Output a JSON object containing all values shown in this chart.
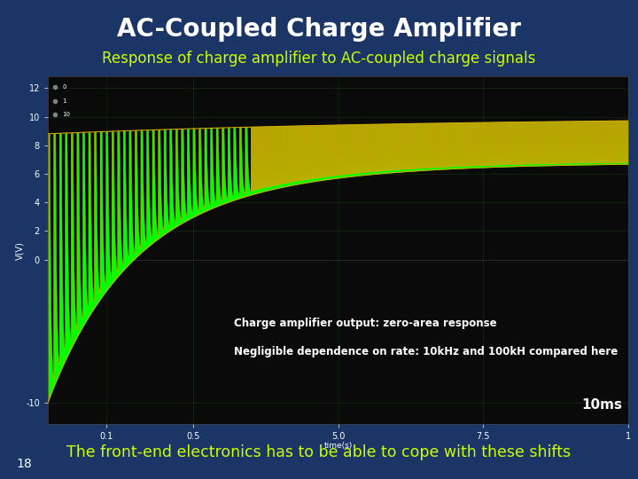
{
  "title": "AC-Coupled Charge Amplifier",
  "subtitle": "Response of charge amplifier to AC-coupled charge signals",
  "footer": "The front-end electronics has to be able to cope with these shifts",
  "annotation1": "Charge amplifier output: zero-area response",
  "annotation2": "Negligible dependence on rate: 10kHz and 100kH compared here",
  "time_label": "10ms",
  "page_num": "18",
  "background_color": "#1a3566",
  "plot_bg_color": "#0a0a0a",
  "title_color": "#ffffff",
  "subtitle_color": "#ccff00",
  "footer_color": "#ccff00",
  "annotation_color": "#ffffff",
  "green_color": "#00ff00",
  "yellow_color": "#ccaa00",
  "grid_color": "#1a3a1a",
  "ylabel": "V(V)",
  "xlabel": "time(s)",
  "ylim_low": -1.15,
  "ylim_high": 1.28,
  "xlim_low": 0.0,
  "xlim_high": 1.0
}
